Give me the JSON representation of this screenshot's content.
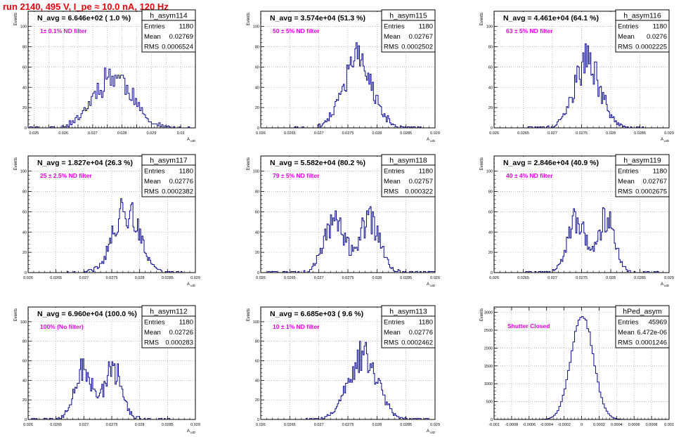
{
  "page_title": "run 2140,   495 V, I_pe ≈ 10.0 nA, 120 Hz",
  "colors": {
    "histogram_line": "#0b0b8c",
    "label_text": "#e000e0",
    "title_text": "#e8000b",
    "axis": "#000000",
    "grid": "#9a9a9a"
  },
  "chart_data": [
    {
      "type": "histogram",
      "name": "h_asym114",
      "navg": "N_avg = 6.646e+02 ( 1.0 %)",
      "label": "1± 0.1% ND filter",
      "stats": {
        "Entries": "1180",
        "Mean": "0.02769",
        "RMS": "0.0006524"
      },
      "xlabel": "A_uID",
      "ylabel": "Events",
      "xlim": [
        0.0248,
        0.0305
      ],
      "ylim": [
        0,
        115
      ],
      "xticks": [
        0.025,
        0.0255,
        0.026,
        0.0265,
        0.027,
        0.0275,
        0.028,
        0.0285,
        0.029,
        0.0295,
        0.03
      ],
      "xticklabels": [
        "0.025",
        "",
        "0.026",
        "",
        "0.027",
        "",
        "0.028",
        "",
        "0.029",
        "",
        "0.03"
      ],
      "yticks": [
        0,
        20,
        40,
        60,
        80,
        100
      ],
      "mean": 0.02769,
      "rms": 0.0006524,
      "entries": 1180,
      "bin_width": 5e-05,
      "peak": 52,
      "shape": "single",
      "seed": 11
    },
    {
      "type": "histogram",
      "name": "h_asym115",
      "navg": "N_avg = 3.574e+04 (51.3 %)",
      "label": "50 ± 5% ND filter",
      "stats": {
        "Entries": "1180",
        "Mean": "0.02767",
        "RMS": "0.0002502"
      },
      "xlabel": "A_uID",
      "ylabel": "Events",
      "xlim": [
        0.026,
        0.029
      ],
      "ylim": [
        0,
        115
      ],
      "xticks": [
        0.026,
        0.0265,
        0.027,
        0.0275,
        0.028,
        0.0285,
        0.029
      ],
      "xticklabels": [
        "0.026",
        "0.0265",
        "0.027",
        "0.0275",
        "0.028",
        "0.0285",
        "0.029"
      ],
      "yticks": [
        0,
        20,
        40,
        60,
        80,
        100
      ],
      "mean": 0.02767,
      "rms": 0.0002502,
      "entries": 1180,
      "bin_width": 2e-05,
      "peak": 66,
      "shape": "single",
      "seed": 23
    },
    {
      "type": "histogram",
      "name": "h_asym116",
      "navg": "N_avg = 4.461e+04 (64.1 %)",
      "label": "63 ± 5% ND filter",
      "stats": {
        "Entries": "1180",
        "Mean": "0.0276",
        "RMS": "0.0002225"
      },
      "xlabel": "A_uID",
      "ylabel": "Events",
      "xlim": [
        0.026,
        0.029
      ],
      "ylim": [
        0,
        115
      ],
      "xticks": [
        0.026,
        0.0265,
        0.027,
        0.0275,
        0.028,
        0.0285,
        0.029
      ],
      "xticklabels": [
        "0.026",
        "0.0265",
        "0.027",
        "0.0275",
        "0.028",
        "0.0285",
        "0.029"
      ],
      "yticks": [
        0,
        20,
        40,
        60,
        80,
        100
      ],
      "mean": 0.0276,
      "rms": 0.0002225,
      "entries": 1180,
      "bin_width": 2e-05,
      "peak": 65,
      "shape": "single",
      "seed": 37
    },
    {
      "type": "histogram",
      "name": "h_asym117",
      "navg": "N_avg = 1.827e+04 (26.3 %)",
      "label": "25 ± 2.5% ND filter",
      "stats": {
        "Entries": "1180",
        "Mean": "0.02776",
        "RMS": "0.0002382"
      },
      "xlabel": "A_uID",
      "ylabel": "Events",
      "xlim": [
        0.026,
        0.029
      ],
      "ylim": [
        0,
        115
      ],
      "xticks": [
        0.026,
        0.0265,
        0.027,
        0.0275,
        0.028,
        0.0285,
        0.029
      ],
      "xticklabels": [
        "0.026",
        "0.0265",
        "0.027",
        "0.0275",
        "0.028",
        "0.0285",
        "0.029"
      ],
      "yticks": [
        0,
        20,
        40,
        60,
        80,
        100
      ],
      "mean": 0.02776,
      "rms": 0.0002382,
      "entries": 1180,
      "bin_width": 2e-05,
      "peak": 62,
      "shape": "single",
      "seed": 41
    },
    {
      "type": "histogram",
      "name": "h_asym118",
      "navg": "N_avg = 5.582e+04 (80.2 %)",
      "label": "79 ± 5% ND filter",
      "stats": {
        "Entries": "1180",
        "Mean": "0.02757",
        "RMS": "0.000322"
      },
      "xlabel": "A_uID",
      "ylabel": "Events",
      "xlim": [
        0.026,
        0.029
      ],
      "ylim": [
        0,
        115
      ],
      "xticks": [
        0.026,
        0.0265,
        0.027,
        0.0275,
        0.028,
        0.0285,
        0.029
      ],
      "xticklabels": [
        "0.026",
        "0.0265",
        "0.027",
        "0.0275",
        "0.028",
        "0.0285",
        "0.029"
      ],
      "yticks": [
        0,
        20,
        40,
        60,
        80,
        100
      ],
      "mean": 0.02757,
      "rms": 0.000322,
      "entries": 1180,
      "bin_width": 2e-05,
      "peak": 53,
      "shape": "double",
      "seed": 53
    },
    {
      "type": "histogram",
      "name": "h_asym119",
      "navg": "N_avg = 2.846e+04 (40.9 %)",
      "label": "40 ± 4% ND filter",
      "stats": {
        "Entries": "1180",
        "Mean": "0.02767",
        "RMS": "0.0002675"
      },
      "xlabel": "A_uID",
      "ylabel": "Events",
      "xlim": [
        0.026,
        0.029
      ],
      "ylim": [
        0,
        115
      ],
      "xticks": [
        0.026,
        0.0265,
        0.027,
        0.0275,
        0.028,
        0.0285,
        0.029
      ],
      "xticklabels": [
        "0.026",
        "0.0265",
        "0.027",
        "0.0275",
        "0.028",
        "0.0285",
        "0.029"
      ],
      "yticks": [
        0,
        20,
        40,
        60,
        80,
        100
      ],
      "mean": 0.02767,
      "rms": 0.0002675,
      "entries": 1180,
      "bin_width": 2e-05,
      "peak": 55,
      "shape": "double",
      "seed": 67
    },
    {
      "type": "histogram",
      "name": "h_asym112",
      "navg": "N_avg = 6.960e+04 (100.0 %)",
      "label": "100% (No filter)",
      "stats": {
        "Entries": "1180",
        "Mean": "0.02726",
        "RMS": "0.000283"
      },
      "xlabel": "A_uID",
      "ylabel": "Events",
      "xlim": [
        0.026,
        0.029
      ],
      "ylim": [
        0,
        115
      ],
      "xticks": [
        0.026,
        0.0265,
        0.027,
        0.0275,
        0.028,
        0.0285,
        0.029
      ],
      "xticklabels": [
        "0.026",
        "0.0265",
        "0.027",
        "0.0275",
        "0.028",
        "0.0285",
        "0.029"
      ],
      "yticks": [
        0,
        20,
        40,
        60,
        80,
        100
      ],
      "mean": 0.02726,
      "rms": 0.000283,
      "entries": 1180,
      "bin_width": 2e-05,
      "peak": 55,
      "shape": "double",
      "seed": 79
    },
    {
      "type": "histogram",
      "name": "h_asym113",
      "navg": "N_avg = 6.685e+03 ( 9.6 %)",
      "label": "10 ± 1% ND filter",
      "stats": {
        "Entries": "1180",
        "Mean": "0.02776",
        "RMS": "0.0002462"
      },
      "xlabel": "A_uID",
      "ylabel": "Events",
      "xlim": [
        0.026,
        0.029
      ],
      "ylim": [
        0,
        115
      ],
      "xticks": [
        0.026,
        0.0265,
        0.027,
        0.0275,
        0.028,
        0.0285,
        0.029
      ],
      "xticklabels": [
        "0.026",
        "0.0265",
        "0.027",
        "0.0275",
        "0.028",
        "0.0285",
        "0.029"
      ],
      "yticks": [
        0,
        20,
        40,
        60,
        80,
        100
      ],
      "mean": 0.02776,
      "rms": 0.0002462,
      "entries": 1180,
      "bin_width": 2e-05,
      "peak": 66,
      "shape": "single",
      "seed": 83
    },
    {
      "type": "histogram",
      "name": "hPed_asym",
      "navg": "",
      "label": "Shutter Closed",
      "stats": {
        "Entries": "45969",
        "Mean": "6.472e-06",
        "RMS": "0.0001246"
      },
      "xlabel": "",
      "ylabel": "Events",
      "xlim": [
        -0.001,
        0.001
      ],
      "ylim": [
        0,
        3150
      ],
      "xticks": [
        -0.001,
        -0.0008,
        -0.0006,
        -0.0004,
        -0.0002,
        0,
        0.0002,
        0.0004,
        0.0006,
        0.0008,
        0.001
      ],
      "xticklabels": [
        "-0.001",
        "-0.0008",
        "-0.0006",
        "-0.0004",
        "-0.0002",
        "0",
        "0.0002",
        "0.0004",
        "0.0006",
        "0.0008",
        "0.001"
      ],
      "yticks": [
        0,
        500,
        1000,
        1500,
        2000,
        2500,
        3000
      ],
      "mean": 6.472e-06,
      "rms": 0.0001246,
      "entries": 45969,
      "bin_width": 2e-05,
      "peak": 3000,
      "shape": "smooth",
      "seed": 97
    }
  ]
}
